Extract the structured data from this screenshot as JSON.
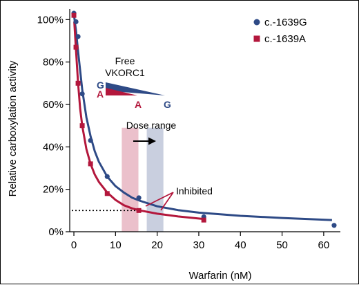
{
  "chart_data": {
    "type": "scatter",
    "title": "",
    "xlabel": "Warfarin (nM)",
    "ylabel": "Relative carboxylation activity",
    "xlim": [
      -1,
      64
    ],
    "ylim": [
      0,
      105
    ],
    "x_ticks": [
      0,
      10,
      20,
      30,
      40,
      50,
      60
    ],
    "x_tick_labels": [
      "0",
      "10",
      "20",
      "30",
      "40",
      "50",
      "60"
    ],
    "y_ticks": [
      0,
      20,
      40,
      60,
      80,
      100
    ],
    "y_tick_labels": [
      "0%",
      "20%",
      "40%",
      "60%",
      "80%",
      "100%"
    ],
    "grid": false,
    "legend_position": "top-right",
    "colors": {
      "G": "#2e4a86",
      "A": "#b3173c"
    },
    "series": [
      {
        "name": "c.-1639G",
        "marker": "circle",
        "color": "#2e4a86",
        "points": [
          [
            0,
            103
          ],
          [
            0.5,
            99
          ],
          [
            1,
            92
          ],
          [
            2,
            65
          ],
          [
            4,
            43
          ],
          [
            8,
            26
          ],
          [
            15.6,
            16
          ],
          [
            31.2,
            7
          ],
          [
            62.5,
            3
          ]
        ],
        "curve": [
          [
            0.1,
            101
          ],
          [
            0.5,
            95
          ],
          [
            1,
            85
          ],
          [
            1.5,
            76
          ],
          [
            2,
            67
          ],
          [
            3,
            54
          ],
          [
            4,
            45
          ],
          [
            5,
            38
          ],
          [
            6,
            33
          ],
          [
            8,
            26
          ],
          [
            10,
            21.5
          ],
          [
            12,
            18.5
          ],
          [
            14,
            16
          ],
          [
            16,
            14.5
          ],
          [
            20,
            12
          ],
          [
            25,
            10.2
          ],
          [
            30,
            9
          ],
          [
            40,
            7.5
          ],
          [
            50,
            6.5
          ],
          [
            62,
            5.5
          ]
        ]
      },
      {
        "name": "c.-1639A",
        "marker": "square",
        "color": "#b3173c",
        "points": [
          [
            0,
            102
          ],
          [
            0.5,
            87
          ],
          [
            1,
            70
          ],
          [
            2,
            50
          ],
          [
            4,
            32
          ],
          [
            8,
            18
          ],
          [
            15.6,
            10
          ],
          [
            31.2,
            5.5
          ]
        ],
        "curve": [
          [
            0.1,
            99
          ],
          [
            0.5,
            86
          ],
          [
            1,
            70
          ],
          [
            1.5,
            58
          ],
          [
            2,
            50
          ],
          [
            3,
            39
          ],
          [
            4,
            32
          ],
          [
            5,
            27
          ],
          [
            6,
            23.5
          ],
          [
            8,
            18.5
          ],
          [
            10,
            15
          ],
          [
            12,
            12.5
          ],
          [
            14,
            11
          ],
          [
            16,
            10
          ],
          [
            20,
            8.5
          ],
          [
            25,
            7.2
          ],
          [
            31.2,
            6
          ]
        ]
      }
    ],
    "dotted_line": {
      "y": 10,
      "x_from": -0.5,
      "x_to": 15.6
    },
    "dose_range": {
      "label": "Dose range",
      "bands": [
        {
          "variant": "A",
          "x_from": 11.5,
          "x_to": 15.5,
          "color": "#e7b5c2"
        },
        {
          "variant": "G",
          "x_from": 17.5,
          "x_to": 21.5,
          "color": "#bfc7d9"
        }
      ]
    },
    "annotations": {
      "free_label_1": "Free",
      "free_label_2": "VKORC1",
      "g_start": "G",
      "a_start": "A",
      "a_end": "A",
      "g_end": "G",
      "inhibited": "Inhibited"
    }
  }
}
